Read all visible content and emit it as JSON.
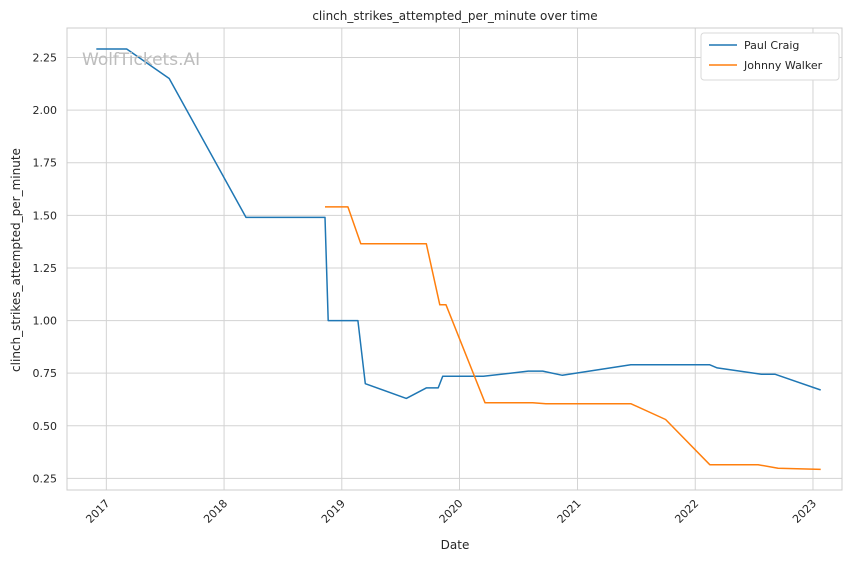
{
  "watermark": "WolfTickets.AI",
  "chart_data": {
    "type": "line",
    "title": "clinch_strikes_attempted_per_minute over time",
    "xlabel": "Date",
    "ylabel": "clinch_strikes_attempted_per_minute",
    "xlim": [
      "2016-09-01",
      "2023-04-01"
    ],
    "ylim": [
      0.195,
      2.39
    ],
    "x_ticks": [
      {
        "label": "2017",
        "date": "2017-01-01"
      },
      {
        "label": "2018",
        "date": "2018-01-01"
      },
      {
        "label": "2019",
        "date": "2019-01-01"
      },
      {
        "label": "2020",
        "date": "2020-01-01"
      },
      {
        "label": "2021",
        "date": "2021-01-01"
      },
      {
        "label": "2022",
        "date": "2022-01-01"
      },
      {
        "label": "2023",
        "date": "2023-01-01"
      }
    ],
    "y_ticks": [
      {
        "label": "0.25",
        "value": 0.25
      },
      {
        "label": "0.50",
        "value": 0.5
      },
      {
        "label": "0.75",
        "value": 0.75
      },
      {
        "label": "1.00",
        "value": 1.0
      },
      {
        "label": "1.25",
        "value": 1.25
      },
      {
        "label": "1.50",
        "value": 1.5
      },
      {
        "label": "1.75",
        "value": 1.75
      },
      {
        "label": "2.00",
        "value": 2.0
      },
      {
        "label": "2.25",
        "value": 2.25
      }
    ],
    "grid": true,
    "legend_position": "top-right",
    "series": [
      {
        "name": "Paul Craig",
        "color": "#1f77b4",
        "points": [
          {
            "x": "2016-12-01",
            "y": 2.29
          },
          {
            "x": "2017-03-05",
            "y": 2.29
          },
          {
            "x": "2017-07-15",
            "y": 2.15
          },
          {
            "x": "2018-03-10",
            "y": 1.49
          },
          {
            "x": "2018-11-10",
            "y": 1.49
          },
          {
            "x": "2018-11-20",
            "y": 1.0
          },
          {
            "x": "2019-02-20",
            "y": 1.0
          },
          {
            "x": "2019-03-15",
            "y": 0.7
          },
          {
            "x": "2019-07-20",
            "y": 0.63
          },
          {
            "x": "2019-09-20",
            "y": 0.68
          },
          {
            "x": "2019-10-27",
            "y": 0.68
          },
          {
            "x": "2019-11-10",
            "y": 0.735
          },
          {
            "x": "2020-03-15",
            "y": 0.735
          },
          {
            "x": "2020-08-01",
            "y": 0.76
          },
          {
            "x": "2020-09-15",
            "y": 0.76
          },
          {
            "x": "2020-11-15",
            "y": 0.74
          },
          {
            "x": "2021-06-15",
            "y": 0.79
          },
          {
            "x": "2022-02-15",
            "y": 0.79
          },
          {
            "x": "2022-03-10",
            "y": 0.775
          },
          {
            "x": "2022-07-25",
            "y": 0.745
          },
          {
            "x": "2022-09-05",
            "y": 0.745
          },
          {
            "x": "2023-01-25",
            "y": 0.67
          }
        ]
      },
      {
        "name": "Johnny Walker",
        "color": "#ff7f0e",
        "points": [
          {
            "x": "2018-11-10",
            "y": 1.54
          },
          {
            "x": "2019-01-20",
            "y": 1.54
          },
          {
            "x": "2019-03-01",
            "y": 1.365
          },
          {
            "x": "2019-09-20",
            "y": 1.365
          },
          {
            "x": "2019-11-01",
            "y": 1.075
          },
          {
            "x": "2019-11-20",
            "y": 1.075
          },
          {
            "x": "2020-03-20",
            "y": 0.61
          },
          {
            "x": "2020-08-15",
            "y": 0.61
          },
          {
            "x": "2020-09-25",
            "y": 0.605
          },
          {
            "x": "2021-06-15",
            "y": 0.605
          },
          {
            "x": "2021-10-01",
            "y": 0.53
          },
          {
            "x": "2022-02-15",
            "y": 0.315
          },
          {
            "x": "2022-07-15",
            "y": 0.315
          },
          {
            "x": "2022-09-15",
            "y": 0.298
          },
          {
            "x": "2023-01-25",
            "y": 0.293
          }
        ]
      }
    ]
  }
}
